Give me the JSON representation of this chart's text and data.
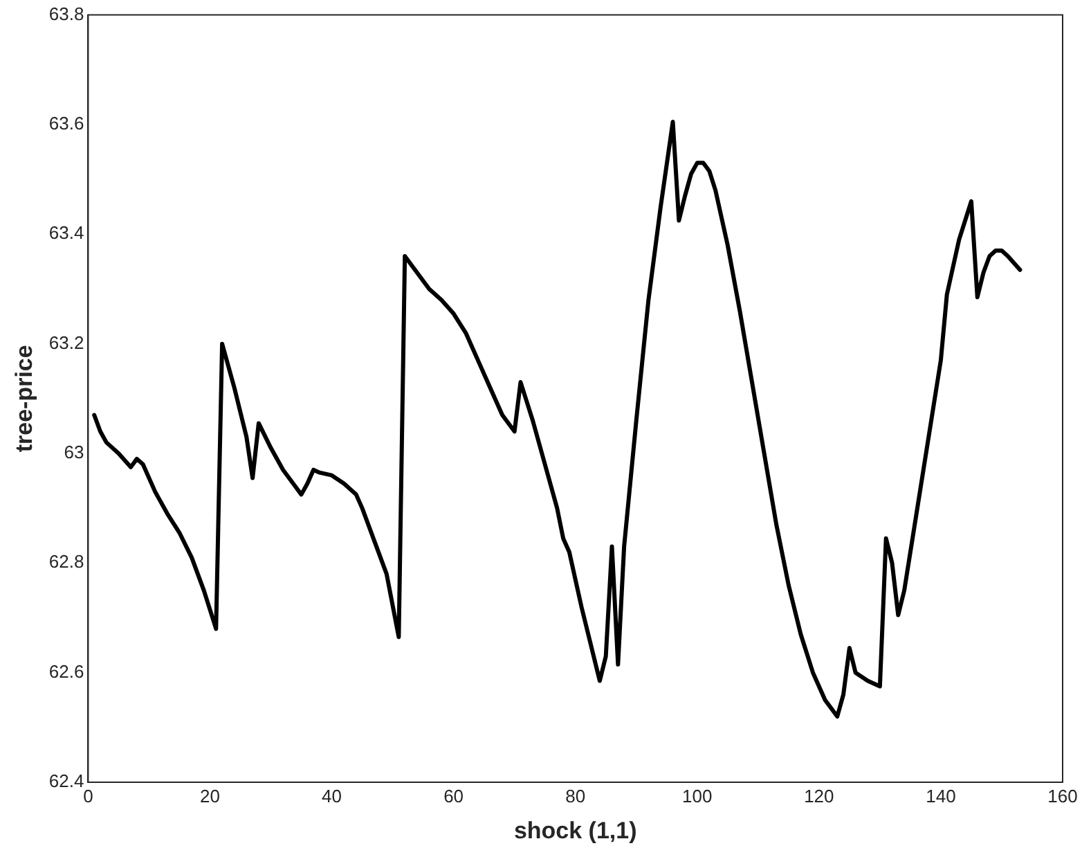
{
  "chart_data": {
    "type": "line",
    "xlabel": "shock (1,1)",
    "ylabel": "tree-price",
    "xlim": [
      0,
      160
    ],
    "xticks": [
      0,
      20,
      40,
      60,
      80,
      100,
      120,
      140,
      160
    ],
    "ylim": [
      62.4,
      63.8
    ],
    "yticks": [
      62.4,
      62.6,
      62.8,
      63,
      63.2,
      63.4,
      63.6,
      63.8
    ],
    "grid": false,
    "legend": false,
    "marker": "none",
    "line_style": "solid",
    "series": [
      {
        "color": "#000000",
        "x": [
          1,
          2,
          3,
          5,
          7,
          8,
          9,
          11,
          13,
          15,
          17,
          19,
          21,
          22,
          24,
          26,
          27,
          28,
          30,
          32,
          34,
          35,
          36,
          37,
          38,
          40,
          42,
          44,
          45,
          47,
          49,
          51,
          52,
          54,
          56,
          58,
          60,
          62,
          64,
          66,
          68,
          70,
          71,
          73,
          75,
          77,
          78,
          79,
          81,
          83,
          84,
          85,
          86,
          87,
          88,
          90,
          92,
          94,
          96,
          97,
          98,
          99,
          100,
          101,
          102,
          103,
          105,
          107,
          109,
          111,
          113,
          115,
          117,
          119,
          121,
          123,
          124,
          125,
          126,
          128,
          130,
          131,
          132,
          133,
          134,
          136,
          138,
          140,
          141,
          143,
          145,
          146,
          147,
          148,
          149,
          150,
          151,
          153
        ],
        "values": [
          63.07,
          63.04,
          63.02,
          63.0,
          62.975,
          62.99,
          62.98,
          62.93,
          62.89,
          62.855,
          62.81,
          62.75,
          62.68,
          63.2,
          63.12,
          63.03,
          62.955,
          63.055,
          63.01,
          62.97,
          62.94,
          62.925,
          62.945,
          62.97,
          62.965,
          62.96,
          62.945,
          62.925,
          62.9,
          62.84,
          62.78,
          62.665,
          63.36,
          63.33,
          63.3,
          63.28,
          63.255,
          63.22,
          63.17,
          63.12,
          63.07,
          63.04,
          63.13,
          63.06,
          62.98,
          62.9,
          62.845,
          62.82,
          62.72,
          62.63,
          62.585,
          62.63,
          62.83,
          62.615,
          62.83,
          63.06,
          63.28,
          63.45,
          63.605,
          63.425,
          63.47,
          63.51,
          63.53,
          63.53,
          63.515,
          63.48,
          63.38,
          63.26,
          63.13,
          63.0,
          62.87,
          62.76,
          62.67,
          62.6,
          62.55,
          62.52,
          62.56,
          62.645,
          62.6,
          62.585,
          62.575,
          62.845,
          62.8,
          62.705,
          62.75,
          62.89,
          63.03,
          63.17,
          63.29,
          63.39,
          63.46,
          63.285,
          63.33,
          63.36,
          63.37,
          63.37,
          63.36,
          63.335
        ]
      }
    ]
  }
}
